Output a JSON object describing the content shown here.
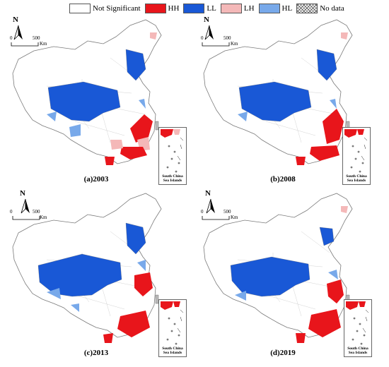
{
  "legend": {
    "items": [
      {
        "label": "Not Significant",
        "color": "#ffffff"
      },
      {
        "label": "HH",
        "color": "#e8151b"
      },
      {
        "label": "LL",
        "color": "#1958d6"
      },
      {
        "label": "LH",
        "color": "#f4b8b8"
      },
      {
        "label": "HL",
        "color": "#78a9ea"
      },
      {
        "label": "No data",
        "color": "hatched"
      }
    ]
  },
  "compass": {
    "north": "N"
  },
  "scale": {
    "zero": "0",
    "value": "500",
    "unit": "Km"
  },
  "inset": {
    "line1": "South China",
    "line2": "Sea Islands"
  },
  "panels": [
    {
      "caption": "(a)2003"
    },
    {
      "caption": "(b)2008"
    },
    {
      "caption": "(c)2013"
    },
    {
      "caption": "(d)2019"
    }
  ]
}
